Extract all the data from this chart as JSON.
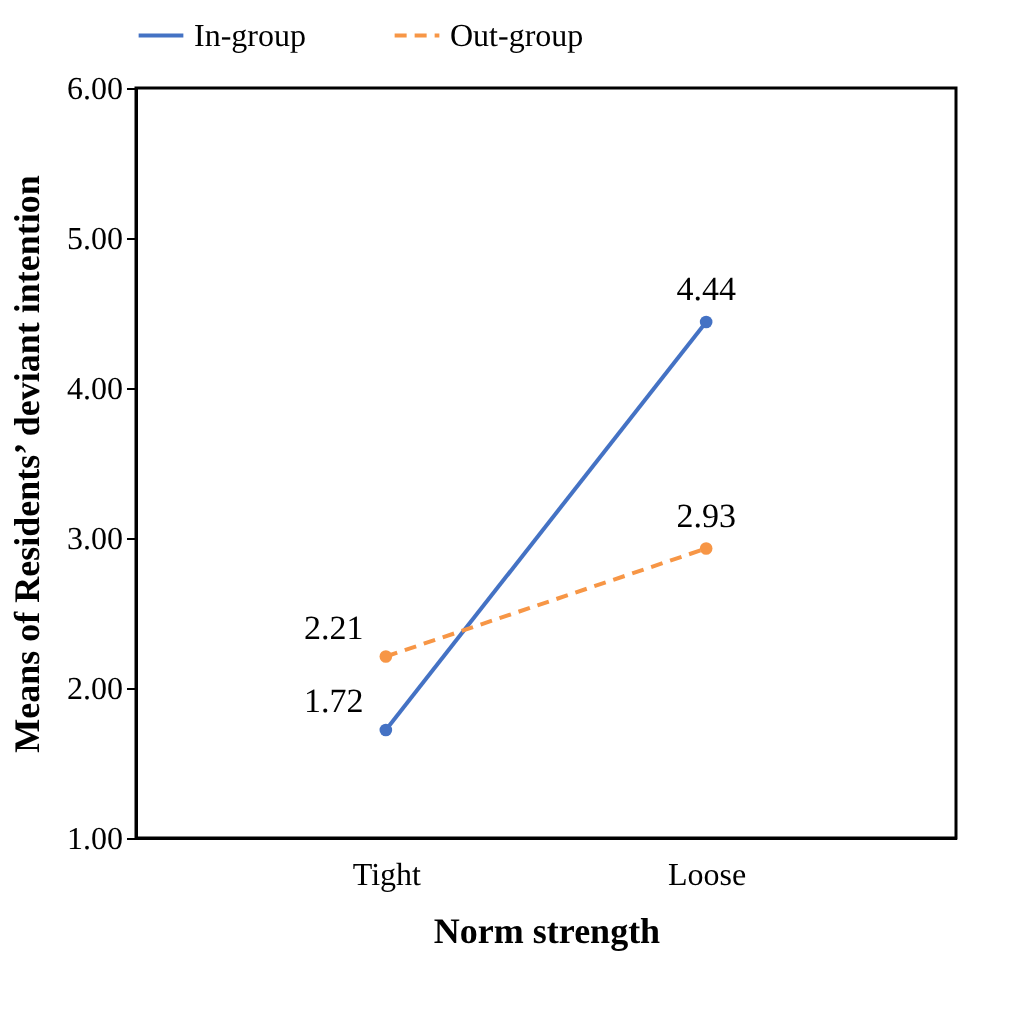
{
  "chart_data": {
    "type": "line",
    "xlabel": "Norm strength",
    "ylabel": "Means of Residents’ deviant intention",
    "categories": [
      "Tight",
      "Loose"
    ],
    "series": [
      {
        "name": "In-group",
        "color": "#4472c4",
        "values": [
          1.72,
          4.44
        ],
        "line_style": "solid"
      },
      {
        "name": "Out-group",
        "color": "#f79646",
        "values": [
          2.21,
          2.93
        ],
        "line_style": "dashed"
      }
    ],
    "ylim": [
      1,
      6
    ],
    "yticks": [
      {
        "value": 1,
        "label": "1.00"
      },
      {
        "value": 2,
        "label": "2.00"
      },
      {
        "value": 3,
        "label": "3.00"
      },
      {
        "value": 4,
        "label": "4.00"
      },
      {
        "value": 5,
        "label": "5.00"
      },
      {
        "value": 6,
        "label": "6.00"
      }
    ],
    "data_labels": true,
    "marker": "circle",
    "legend": "top",
    "grid": false
  }
}
